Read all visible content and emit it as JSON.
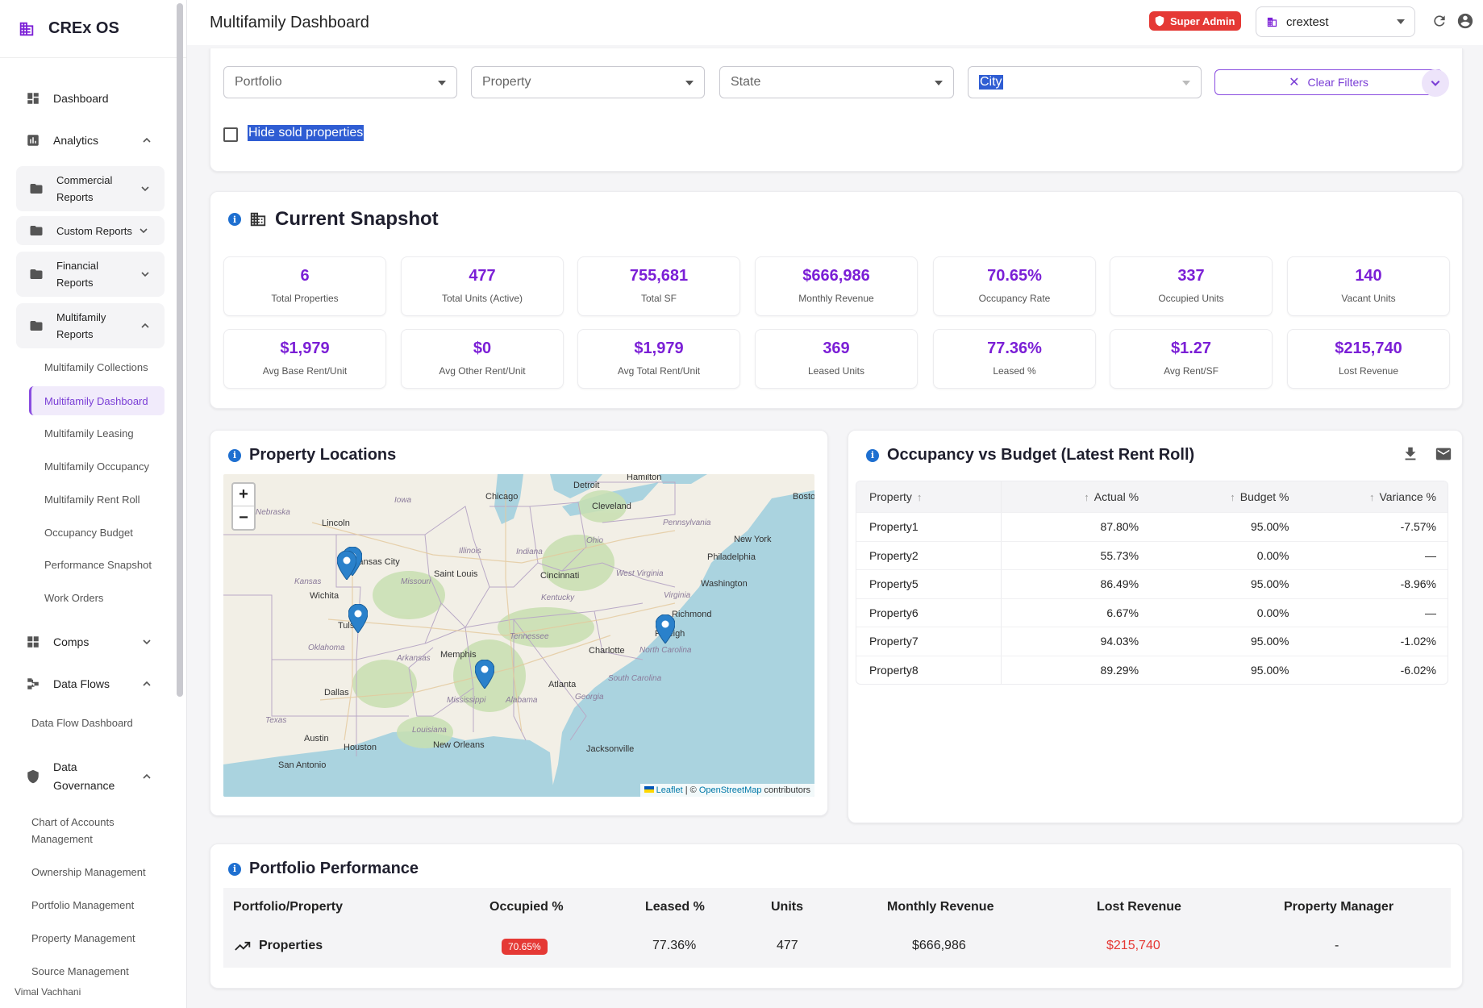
{
  "app": {
    "name": "CREx OS"
  },
  "sidebar": {
    "dashboard": "Dashboard",
    "analytics": "Analytics",
    "groups": [
      {
        "label1": "Commercial",
        "label2": "Reports"
      },
      {
        "label1": "Custom Reports",
        "label2": ""
      },
      {
        "label1": "Financial",
        "label2": "Reports"
      },
      {
        "label1": "Multifamily",
        "label2": "Reports"
      }
    ],
    "multifamily_items": [
      "Multifamily Collections",
      "Multifamily Dashboard",
      "Multifamily Leasing",
      "Multifamily Occupancy",
      "Multifamily Rent Roll",
      "Occupancy Budget",
      "Performance Snapshot",
      "Work Orders"
    ],
    "comps": "Comps",
    "data_flows": "Data Flows",
    "data_flow_dashboard": "Data Flow Dashboard",
    "data_governance_1": "Data",
    "data_governance_2": "Governance",
    "governance_items": {
      "chart_of_accounts_1": "Chart of Accounts",
      "chart_of_accounts_2": "Management",
      "ownership": "Ownership Management",
      "portfolio": "Portfolio Management",
      "property": "Property Management",
      "source": "Source Management"
    },
    "user": "Vimal Vachhani"
  },
  "header": {
    "title": "Multifamily Dashboard",
    "role_badge": "Super Admin",
    "tenant": "crextest",
    "icons": [
      "refresh-icon",
      "account-icon"
    ]
  },
  "filters": {
    "portfolio": "Portfolio",
    "property": "Property",
    "state": "State",
    "city": "City",
    "clear_label": "Clear Filters",
    "hide_sold": "Hide sold properties"
  },
  "snapshot": {
    "title": "Current Snapshot",
    "row1": [
      {
        "value": "6",
        "label": "Total Properties"
      },
      {
        "value": "477",
        "label": "Total Units (Active)"
      },
      {
        "value": "755,681",
        "label": "Total SF"
      },
      {
        "value": "$666,986",
        "label": "Monthly Revenue"
      },
      {
        "value": "70.65%",
        "label": "Occupancy Rate"
      },
      {
        "value": "337",
        "label": "Occupied Units"
      },
      {
        "value": "140",
        "label": "Vacant Units"
      }
    ],
    "row2": [
      {
        "value": "$1,979",
        "label": "Avg Base Rent/Unit"
      },
      {
        "value": "$0",
        "label": "Avg Other Rent/Unit"
      },
      {
        "value": "$1,979",
        "label": "Avg Total Rent/Unit"
      },
      {
        "value": "369",
        "label": "Leased Units"
      },
      {
        "value": "77.36%",
        "label": "Leased %"
      },
      {
        "value": "$1.27",
        "label": "Avg Rent/SF"
      },
      {
        "value": "$215,740",
        "label": "Lost Revenue"
      }
    ]
  },
  "locations": {
    "title": "Property Locations",
    "zoom_in": "+",
    "zoom_out": "−",
    "attribution_leaflet": "Leaflet",
    "attribution_sep": " | © ",
    "attribution_osm": "OpenStreetMap",
    "attribution_tail": " contributors",
    "cities": [
      "Hamilton",
      "Detroit",
      "Chicago",
      "Cleveland",
      "New York",
      "Boston",
      "Lincoln",
      "Iowa",
      "Nebraska",
      "Pennsylvania",
      "Ohio",
      "Illinois",
      "Indiana",
      "Kansas City",
      "Saint Louis",
      "Cincinnati",
      "West Virginia",
      "Philadelphia",
      "Kansas",
      "Wichita",
      "Missouri",
      "Kentucky",
      "Washington",
      "Virginia",
      "Richmond",
      "Tulsa",
      "Oklahoma",
      "Memphis",
      "Tennessee",
      "Raleigh",
      "Charlotte",
      "North Carolina",
      "Arkansas",
      "Dallas",
      "Atlanta",
      "South Carolina",
      "Mississippi",
      "Alabama",
      "Georgia",
      "Texas",
      "Louisiana",
      "Austin",
      "Houston",
      "New Orleans",
      "Jacksonville",
      "San Antonio"
    ]
  },
  "occupancy": {
    "title": "Occupancy vs Budget (Latest Rent Roll)",
    "columns": [
      "Property",
      "Actual %",
      "Budget %",
      "Variance %"
    ],
    "rows": [
      [
        "Property1",
        "87.80%",
        "95.00%",
        "-7.57%"
      ],
      [
        "Property2",
        "55.73%",
        "0.00%",
        "—"
      ],
      [
        "Property5",
        "86.49%",
        "95.00%",
        "-8.96%"
      ],
      [
        "Property6",
        "6.67%",
        "0.00%",
        "—"
      ],
      [
        "Property7",
        "94.03%",
        "95.00%",
        "-1.02%"
      ],
      [
        "Property8",
        "89.29%",
        "95.00%",
        "-6.02%"
      ]
    ]
  },
  "performance": {
    "title": "Portfolio Performance",
    "columns": [
      "Portfolio/Property",
      "Occupied %",
      "Leased %",
      "Units",
      "Monthly Revenue",
      "Lost Revenue",
      "Property Manager"
    ],
    "row": {
      "name": "Properties",
      "occupied": "70.65%",
      "leased": "77.36%",
      "units": "477",
      "monthly_revenue": "$666,986",
      "lost_revenue": "$215,740",
      "manager": "-"
    }
  },
  "colors": {
    "accent": "#7b1fd6",
    "danger": "#e53935",
    "info": "#1e6fd0"
  }
}
